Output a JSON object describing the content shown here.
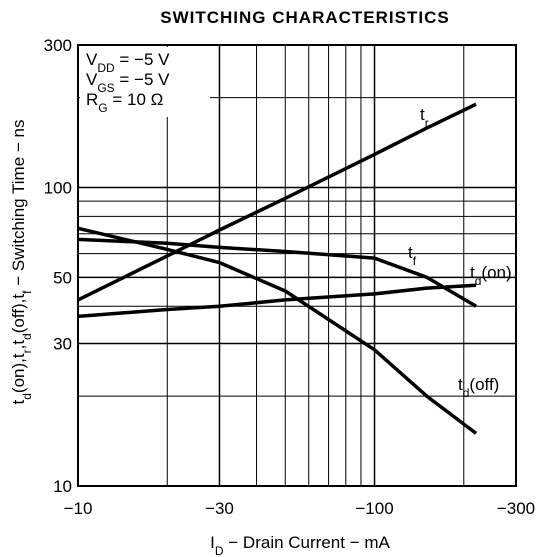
{
  "chart_data": {
    "type": "line",
    "title": "SWITCHING CHARACTERISTICS",
    "x_label": [
      {
        "text": "I"
      },
      {
        "text": "D",
        "sub": true
      },
      {
        "text": " − Drain Current − mA"
      }
    ],
    "y_label": [
      {
        "text": "t"
      },
      {
        "text": "d",
        "sub": true
      },
      {
        "text": "(on),t"
      },
      {
        "text": "r",
        "sub": true
      },
      {
        "text": ",t"
      },
      {
        "text": "d",
        "sub": true
      },
      {
        "text": "(off),t"
      },
      {
        "text": "f",
        "sub": true
      },
      {
        "text": " − Switching Time − ns"
      }
    ],
    "annotations": [
      [
        {
          "text": "V"
        },
        {
          "text": "DD",
          "sub": true
        },
        {
          "text": " = −5 V"
        }
      ],
      [
        {
          "text": "V"
        },
        {
          "text": "GS",
          "sub": true
        },
        {
          "text": " = −5 V"
        }
      ],
      [
        {
          "text": "R"
        },
        {
          "text": "G",
          "sub": true
        },
        {
          "text": " = 10 Ω"
        }
      ]
    ],
    "x_log": true,
    "y_log": true,
    "grid": true,
    "xlim": [
      -10,
      -300
    ],
    "ylim": [
      10,
      300
    ],
    "xticks": [
      {
        "value": -10,
        "label": "−10"
      },
      {
        "value": -30,
        "label": "−30"
      },
      {
        "value": -100,
        "label": "−100"
      },
      {
        "value": -300,
        "label": "−300"
      }
    ],
    "yticks": [
      10,
      30,
      50,
      100,
      300
    ],
    "x_minor_ticks": [
      -20,
      -40,
      -50,
      -60,
      -70,
      -80,
      -90,
      -200
    ],
    "y_minor_ticks": [
      20,
      40,
      60,
      70,
      80,
      90,
      200
    ],
    "x": [
      -10,
      -20,
      -30,
      -50,
      -100,
      -150,
      -220
    ],
    "series": [
      {
        "name": [
          {
            "text": "t"
          },
          {
            "text": "r",
            "sub": true
          }
        ],
        "color": "#000000",
        "values": [
          42,
          59,
          72,
          92,
          129,
          158,
          190
        ]
      },
      {
        "name": [
          {
            "text": "t"
          },
          {
            "text": "f",
            "sub": true
          }
        ],
        "color": "#000000",
        "values": [
          67,
          65,
          63,
          61,
          58,
          50,
          40
        ]
      },
      {
        "name": [
          {
            "text": "t"
          },
          {
            "text": "d",
            "sub": true
          },
          {
            "text": "(on)"
          }
        ],
        "color": "#000000",
        "values": [
          37,
          39,
          40,
          42,
          44,
          46,
          47
        ]
      },
      {
        "name": [
          {
            "text": "t"
          },
          {
            "text": "d",
            "sub": true
          },
          {
            "text": "(off)"
          }
        ],
        "color": "#000000",
        "values": [
          73,
          62,
          56,
          45,
          28.6,
          20,
          15
        ]
      }
    ]
  }
}
